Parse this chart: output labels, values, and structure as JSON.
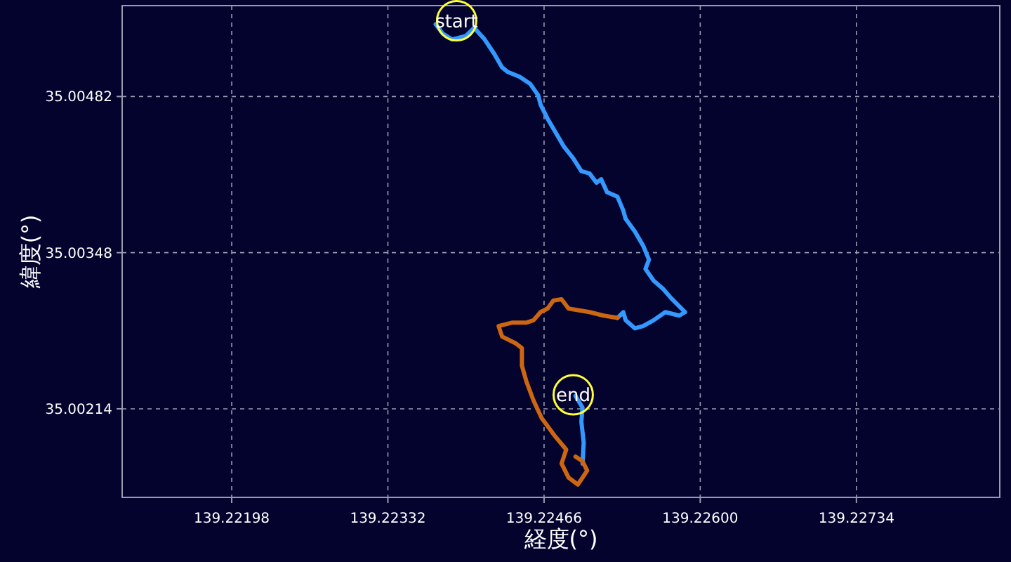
{
  "chart_data": {
    "type": "line",
    "xlabel": "経度(°)",
    "ylabel": "緯度(°)",
    "xlim": [
      139.22104,
      139.22857
    ],
    "ylim": [
      35.00138,
      35.0056
    ],
    "xticks": [
      139.22198,
      139.22332,
      139.22466,
      {
        "value": 139.226,
        "label": "139.22600"
      },
      139.22734
    ],
    "yticks": [
      35.00214,
      35.00348,
      35.00482
    ],
    "grid": true,
    "series": [
      {
        "color": "#3399ff",
        "x": [
          139.22373,
          139.22379,
          139.22387,
          139.22399,
          139.22406,
          139.22415,
          139.22423,
          139.2243,
          139.22435,
          139.22445,
          139.22454,
          139.22461,
          139.22463,
          139.22469,
          139.22476,
          139.22483,
          139.22491,
          139.22498,
          139.22505,
          139.22511,
          139.22515,
          139.2252,
          139.22529,
          139.22534,
          139.22536,
          139.22544,
          139.22551,
          139.22556,
          139.22553,
          139.2256,
          139.22568,
          139.22575,
          139.22587,
          139.22582,
          139.2257,
          139.2256,
          139.22551,
          139.22544,
          139.22536,
          139.22534,
          139.22529
        ],
        "values": [
          35.00544,
          35.00536,
          35.00531,
          35.00534,
          35.00541,
          35.00531,
          35.00519,
          35.00507,
          35.00503,
          35.00499,
          35.00493,
          35.00483,
          35.00475,
          35.00463,
          35.00451,
          35.00439,
          35.00429,
          35.00418,
          35.00416,
          35.00408,
          35.00411,
          35.004,
          35.00396,
          35.00384,
          35.00377,
          35.00366,
          35.00354,
          35.00342,
          35.00334,
          35.00324,
          35.00317,
          35.00309,
          35.00297,
          35.00294,
          35.00297,
          35.0029,
          35.00285,
          35.00283,
          35.0029,
          35.00297,
          35.00292
        ]
      },
      {
        "color": "#3399ff",
        "x": [
          139.22499,
          139.225,
          139.22498,
          139.22499,
          139.22493
        ],
        "values": [
          35.00167,
          35.00185,
          35.00203,
          35.00215,
          35.00225
        ]
      },
      {
        "color": "#cc6611",
        "x": [
          139.22529,
          139.22517,
          139.22505,
          139.22487,
          139.22481,
          139.22474,
          139.22469,
          139.22463,
          139.22457,
          139.22451,
          139.22439,
          139.22427,
          139.2243,
          139.22442,
          139.22447,
          139.22447,
          139.22451,
          139.22457,
          139.22464,
          139.22475,
          139.22485,
          139.22481,
          139.22487,
          139.22495,
          139.22503,
          139.22499,
          139.22493
        ],
        "values": [
          35.00292,
          35.00294,
          35.00297,
          35.003,
          35.00308,
          35.00307,
          35.003,
          35.00297,
          35.0029,
          35.00288,
          35.00288,
          35.00285,
          35.00276,
          35.0027,
          35.00266,
          35.00251,
          35.00237,
          35.00221,
          35.00206,
          35.00191,
          35.00179,
          35.00167,
          35.00155,
          35.00149,
          35.00161,
          35.00169,
          35.00173
        ]
      }
    ],
    "annotations": [
      {
        "text": "start",
        "x": 139.22391,
        "y": 35.00547
      },
      {
        "text": "end",
        "x": 139.22491,
        "y": 35.00226
      }
    ]
  }
}
